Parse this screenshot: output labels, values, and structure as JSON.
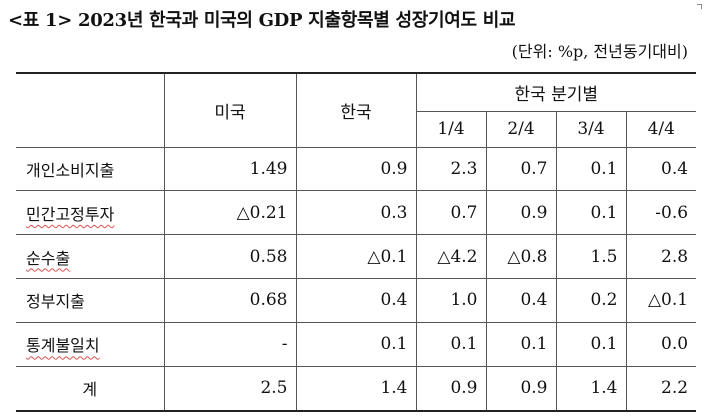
{
  "title": "<표 1> 2023년 한국과 미국의 GDP 지출항목별 성장기여도 비교",
  "unit": "(단위: %p, 전년동기대비)",
  "table": {
    "headers": {
      "us": "미국",
      "korea": "한국",
      "quarterly_group": "한국 분기별",
      "quarters": [
        "1/4",
        "2/4",
        "3/4",
        "4/4"
      ]
    },
    "rows": [
      {
        "label": "개인소비지출",
        "us": "1.49",
        "korea": "0.9",
        "q": [
          "2.3",
          "0.7",
          "0.1",
          "0.4"
        ]
      },
      {
        "label": "민간고정투자",
        "us": "△0.21",
        "korea": "0.3",
        "q": [
          "0.7",
          "0.9",
          "0.1",
          "-0.6"
        ]
      },
      {
        "label": "순수출",
        "us": "0.58",
        "korea": "△0.1",
        "q": [
          "△4.2",
          "△0.8",
          "1.5",
          "2.8"
        ]
      },
      {
        "label": "정부지출",
        "us": "0.68",
        "korea": "0.4",
        "q": [
          "1.0",
          "0.4",
          "0.2",
          "△0.1"
        ]
      },
      {
        "label": "통계불일치",
        "us": "-",
        "korea": "0.1",
        "q": [
          "0.1",
          "0.1",
          "0.1",
          "0.0"
        ]
      },
      {
        "label": "계",
        "us": "2.5",
        "korea": "1.4",
        "q": [
          "0.9",
          "0.9",
          "1.4",
          "2.2"
        ]
      }
    ]
  }
}
